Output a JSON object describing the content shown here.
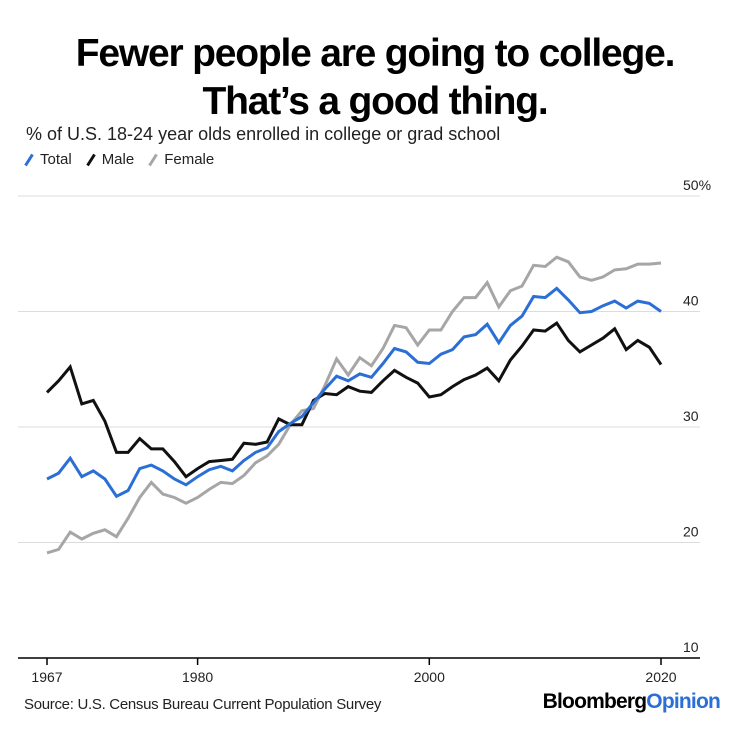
{
  "title_line1": "Fewer people are going to college.",
  "title_line2": "That’s a good thing.",
  "subtitle": "% of U.S. 18-24 year olds enrolled in college or grad school",
  "source": "Source: U.S. Census Bureau Current Population Survey",
  "brand": {
    "part1": "Bloomberg",
    "part2": "Opinion"
  },
  "colors": {
    "total": "#2b6fd6",
    "male": "#111111",
    "female": "#a6a6a6",
    "brand_accent": "#2b6fd6"
  },
  "chart_data": {
    "type": "line",
    "title": "Fewer people are going to college. That’s a good thing.",
    "subtitle": "% of U.S. 18-24 year olds enrolled in college or grad school",
    "ylim": [
      10,
      50
    ],
    "xlim": [
      1967,
      2020
    ],
    "x_ticks": [
      "1967",
      "1980",
      "2000",
      "2020"
    ],
    "y_ticks": [
      "10",
      "20",
      "30",
      "40",
      "50%"
    ],
    "y_tick_values": [
      10,
      20,
      30,
      40,
      50
    ],
    "grid": true,
    "legend_position": "top-left",
    "x": [
      1967,
      1968,
      1969,
      1970,
      1971,
      1972,
      1973,
      1974,
      1975,
      1976,
      1977,
      1978,
      1979,
      1980,
      1981,
      1982,
      1983,
      1984,
      1985,
      1986,
      1987,
      1988,
      1989,
      1990,
      1991,
      1992,
      1993,
      1994,
      1995,
      1996,
      1997,
      1998,
      1999,
      2000,
      2001,
      2002,
      2003,
      2004,
      2005,
      2006,
      2007,
      2008,
      2009,
      2010,
      2011,
      2012,
      2013,
      2014,
      2015,
      2016,
      2017,
      2018,
      2019,
      2020
    ],
    "series": [
      {
        "name": "Total",
        "color": "#2b6fd6",
        "values": [
          25.5,
          26.0,
          27.3,
          25.7,
          26.2,
          25.5,
          24.0,
          24.5,
          26.4,
          26.7,
          26.2,
          25.5,
          25.0,
          25.7,
          26.3,
          26.6,
          26.2,
          27.1,
          27.8,
          28.2,
          29.6,
          30.3,
          30.9,
          32.1,
          33.3,
          34.4,
          34.0,
          34.6,
          34.3,
          35.5,
          36.8,
          36.5,
          35.6,
          35.5,
          36.3,
          36.7,
          37.8,
          38.0,
          38.9,
          37.3,
          38.8,
          39.6,
          41.3,
          41.2,
          42.0,
          41.0,
          39.9,
          40.0,
          40.5,
          40.9,
          40.3,
          40.9,
          40.7,
          40.0
        ]
      },
      {
        "name": "Male",
        "color": "#111111",
        "values": [
          33.0,
          34.0,
          35.2,
          32.0,
          32.3,
          30.5,
          27.8,
          27.8,
          29.0,
          28.1,
          28.1,
          27.0,
          25.7,
          26.4,
          27.0,
          27.1,
          27.2,
          28.6,
          28.5,
          28.7,
          30.7,
          30.2,
          30.2,
          32.3,
          32.9,
          32.8,
          33.5,
          33.1,
          33.0,
          34.0,
          34.9,
          34.3,
          33.8,
          32.6,
          32.8,
          33.5,
          34.1,
          34.5,
          35.1,
          34.0,
          35.8,
          37.0,
          38.4,
          38.3,
          39.0,
          37.5,
          36.5,
          37.1,
          37.7,
          38.5,
          36.7,
          37.5,
          36.9,
          35.4
        ]
      },
      {
        "name": "Female",
        "color": "#a6a6a6",
        "values": [
          19.1,
          19.4,
          20.9,
          20.3,
          20.8,
          21.1,
          20.5,
          22.1,
          23.9,
          25.2,
          24.2,
          23.9,
          23.4,
          23.9,
          24.6,
          25.2,
          25.1,
          25.8,
          26.9,
          27.5,
          28.5,
          30.2,
          31.4,
          31.6,
          33.6,
          35.9,
          34.5,
          36.0,
          35.3,
          36.8,
          38.8,
          38.6,
          37.1,
          38.4,
          38.4,
          40.0,
          41.2,
          41.2,
          42.5,
          40.4,
          41.8,
          42.2,
          44.0,
          43.9,
          44.7,
          44.3,
          43.0,
          42.7,
          43.0,
          43.6,
          43.7,
          44.1,
          44.1,
          44.2
        ]
      }
    ]
  }
}
